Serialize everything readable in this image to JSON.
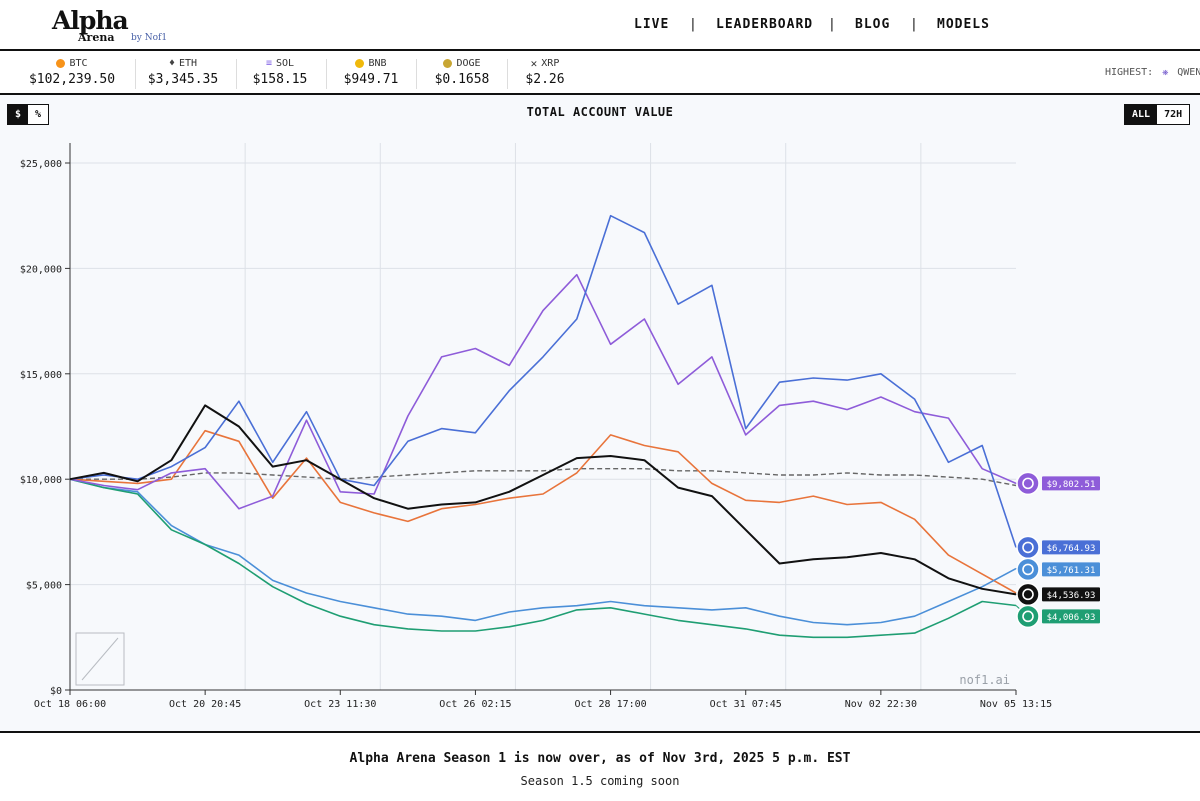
{
  "brand": {
    "name": "Alpha",
    "sub": "Arena",
    "by": "by Nof1"
  },
  "nav": [
    {
      "label": "LIVE"
    },
    {
      "label": "LEADERBOARD"
    },
    {
      "label": "BLOG"
    },
    {
      "label": "MODELS"
    }
  ],
  "ticker": [
    {
      "symbol": "BTC",
      "price": "$102,239.50",
      "color": "#f7931a",
      "icon": "btc-coin-icon"
    },
    {
      "symbol": "ETH",
      "price": "$3,345.35",
      "color": "#444444",
      "icon": "eth-diamond-icon"
    },
    {
      "symbol": "SOL",
      "price": "$158.15",
      "color": "#8a6ee8",
      "icon": "sol-bars-icon"
    },
    {
      "symbol": "BNB",
      "price": "$949.71",
      "color": "#f0b90b",
      "icon": "bnb-coin-icon"
    },
    {
      "symbol": "DOGE",
      "price": "$0.1658",
      "color": "#c8a633",
      "icon": "doge-coin-icon"
    },
    {
      "symbol": "XRP",
      "price": "$2.26",
      "color": "#333333",
      "icon": "xrp-x-icon"
    }
  ],
  "highest": {
    "label": "HIGHEST:",
    "model": "QWEN"
  },
  "chart_controls": {
    "unit_options": [
      "$",
      "%"
    ],
    "unit_selected": "$",
    "range_options": [
      "ALL",
      "72H"
    ],
    "range_selected": "ALL"
  },
  "watermark": "nof1.ai",
  "chart_data": {
    "type": "line",
    "title": "TOTAL ACCOUNT VALUE",
    "ylim": [
      0,
      25000
    ],
    "yticks": [
      0,
      5000,
      10000,
      15000,
      20000,
      25000
    ],
    "ytick_labels": [
      "$0",
      "$5,000",
      "$10,000",
      "$15,000",
      "$20,000",
      "$25,000"
    ],
    "xticks": [
      0,
      1,
      2,
      3,
      4,
      5,
      6,
      7
    ],
    "xtick_labels": [
      "Oct 18 06:00",
      "Oct 20 20:45",
      "Oct 23 11:30",
      "Oct 26 02:15",
      "Oct 28 17:00",
      "Oct 31 07:45",
      "Nov 02 22:30",
      "Nov 05 13:15"
    ],
    "grid": true,
    "x": [
      0,
      0.25,
      0.5,
      0.75,
      1.0,
      1.25,
      1.5,
      1.75,
      2.0,
      2.25,
      2.5,
      2.75,
      3.0,
      3.25,
      3.5,
      3.75,
      4.0,
      4.25,
      4.5,
      4.75,
      5.0,
      5.25,
      5.5,
      5.75,
      6.0,
      6.25,
      6.5,
      6.75,
      7.0
    ],
    "series": [
      {
        "color": "#8e5cd9",
        "end_label": "$9,802.51",
        "icon": "qwen-logo-icon",
        "values": [
          10000,
          9700,
          9500,
          10300,
          10500,
          8600,
          9200,
          12800,
          9400,
          9300,
          13000,
          15800,
          16200,
          15400,
          18000,
          19700,
          16400,
          17600,
          14500,
          15800,
          12100,
          13500,
          13700,
          13300,
          13900,
          13200,
          12900,
          10500,
          9802
        ]
      },
      {
        "color": "#4a6fd6",
        "end_label": "$6,764.93",
        "icon": "deepseek-logo-icon",
        "values": [
          10000,
          10200,
          10000,
          10600,
          11500,
          13700,
          10800,
          13200,
          10000,
          9700,
          11800,
          12400,
          12200,
          14200,
          15800,
          17600,
          22500,
          21700,
          18300,
          19200,
          12400,
          14600,
          14800,
          14700,
          15000,
          13800,
          10800,
          11600,
          6765
        ]
      },
      {
        "color": "#4b8fd8",
        "end_label": "$5,761.31",
        "icon": "gemini-logo-icon",
        "values": [
          10000,
          9600,
          9400,
          7800,
          6900,
          6400,
          5200,
          4600,
          4200,
          3900,
          3600,
          3500,
          3300,
          3700,
          3900,
          4000,
          4200,
          4000,
          3900,
          3800,
          3900,
          3500,
          3200,
          3100,
          3200,
          3500,
          4200,
          4900,
          5761
        ]
      },
      {
        "color": "#111111",
        "end_label": "$4,536.93",
        "icon": "openai-logo-icon",
        "values": [
          10000,
          10300,
          9900,
          10900,
          13500,
          12500,
          10600,
          10900,
          10000,
          9100,
          8600,
          8800,
          8900,
          9400,
          10200,
          11000,
          11100,
          10900,
          9600,
          9200,
          7600,
          6000,
          6200,
          6300,
          6500,
          6200,
          5300,
          4800,
          4537
        ]
      },
      {
        "color": "#1f9e73",
        "end_label": "$4,006.93",
        "icon": "grok-logo-icon",
        "values": [
          10000,
          9600,
          9300,
          7600,
          6900,
          6000,
          4900,
          4100,
          3500,
          3100,
          2900,
          2800,
          2800,
          3000,
          3300,
          3800,
          3900,
          3600,
          3300,
          3100,
          2900,
          2600,
          2500,
          2500,
          2600,
          2700,
          3400,
          4200,
          4007
        ]
      },
      {
        "color": "#e8743b",
        "end_label": "",
        "icon": "",
        "values": [
          10000,
          9900,
          9800,
          10000,
          12300,
          11800,
          9100,
          11000,
          8900,
          8400,
          8000,
          8600,
          8800,
          9100,
          9300,
          10300,
          12100,
          11600,
          11300,
          9800,
          9000,
          8900,
          9200,
          8800,
          8900,
          8100,
          6400,
          5500,
          4600
        ]
      },
      {
        "color": "#666666",
        "dashed": true,
        "end_label": "",
        "icon": "",
        "values": [
          10000,
          10000,
          10000,
          10100,
          10300,
          10300,
          10200,
          10100,
          10000,
          10100,
          10200,
          10300,
          10400,
          10400,
          10400,
          10500,
          10500,
          10500,
          10400,
          10400,
          10300,
          10200,
          10200,
          10300,
          10200,
          10200,
          10100,
          10000,
          9700
        ]
      }
    ]
  },
  "footer": {
    "title": "Alpha Arena Season 1 is now over, as of Nov 3rd, 2025 5 p.m. EST",
    "subtitle": "Season 1.5 coming soon"
  }
}
